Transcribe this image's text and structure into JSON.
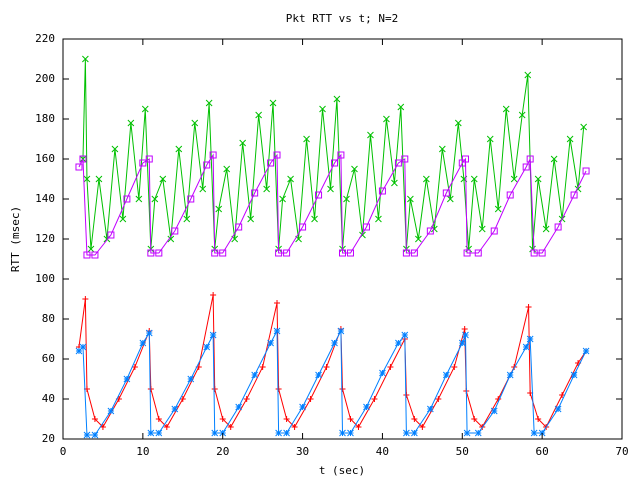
{
  "chart_data": {
    "type": "line",
    "title": "Pkt RTT vs t; N=2",
    "xlabel": "t (sec)",
    "ylabel": "RTT (msec)",
    "xlim": [
      0,
      70
    ],
    "ylim": [
      20,
      220
    ],
    "xticks": [
      0,
      10,
      20,
      30,
      40,
      50,
      60,
      70
    ],
    "yticks": [
      20,
      40,
      60,
      80,
      100,
      120,
      140,
      160,
      180,
      200,
      220
    ],
    "grid": false,
    "series": [
      {
        "color": "#ff0000",
        "marker": "plus",
        "x": [
          2,
          2.8,
          3,
          4,
          5,
          7,
          9,
          10.8,
          11,
          12,
          13,
          15,
          17,
          18.8,
          19,
          20,
          21,
          23,
          25,
          26.8,
          27,
          28,
          29,
          31,
          33,
          34.8,
          35,
          36,
          37,
          39,
          41,
          42.8,
          43,
          44,
          45,
          47,
          49,
          50.3,
          50.5,
          51.5,
          52.5,
          54.5,
          56.5,
          58.3,
          58.5,
          59.5,
          60.5,
          62.5,
          64.5,
          65.5
        ],
        "values": [
          66,
          90,
          45,
          30,
          26,
          40,
          56,
          74,
          45,
          30,
          26,
          40,
          56,
          92,
          45,
          30,
          26,
          40,
          56,
          88,
          45,
          30,
          26,
          40,
          56,
          75,
          45,
          30,
          26,
          40,
          56,
          70,
          42,
          30,
          26,
          40,
          56,
          75,
          44,
          30,
          26,
          40,
          56,
          86,
          43,
          30,
          26,
          42,
          58,
          64
        ]
      },
      {
        "color": "#00c000",
        "marker": "cross",
        "x": [
          2.5,
          2.8,
          3,
          3.5,
          4.5,
          5.5,
          6.5,
          7.5,
          8.5,
          9.5,
          10.3,
          11,
          11.5,
          12.5,
          13.5,
          14.5,
          15.5,
          16.5,
          17.5,
          18.3,
          19,
          19.5,
          20.5,
          21.5,
          22.5,
          23.5,
          24.5,
          25.5,
          26.3,
          27,
          27.5,
          28.5,
          29.5,
          30.5,
          31.5,
          32.5,
          33.5,
          34.3,
          35,
          35.5,
          36.5,
          37.5,
          38.5,
          39.5,
          40.5,
          41.5,
          42.3,
          43,
          43.5,
          44.5,
          45.5,
          46.5,
          47.5,
          48.5,
          49.5,
          50.2,
          50.8,
          51.5,
          52.5,
          53.5,
          54.5,
          55.5,
          56.5,
          57.5,
          58.2,
          58.8,
          59.5,
          60.5,
          61.5,
          62.5,
          63.5,
          64.5,
          65.2
        ],
        "values": [
          160,
          210,
          150,
          115,
          150,
          120,
          165,
          130,
          178,
          140,
          185,
          115,
          140,
          150,
          120,
          165,
          130,
          178,
          145,
          188,
          115,
          135,
          155,
          120,
          168,
          130,
          182,
          145,
          188,
          115,
          140,
          150,
          120,
          170,
          130,
          185,
          145,
          190,
          115,
          140,
          155,
          122,
          172,
          130,
          180,
          148,
          186,
          115,
          140,
          120,
          150,
          125,
          165,
          140,
          178,
          150,
          115,
          150,
          125,
          170,
          135,
          185,
          150,
          182,
          202,
          115,
          150,
          125,
          160,
          130,
          170,
          145,
          176
        ]
      },
      {
        "color": "#0080ff",
        "marker": "star",
        "x": [
          2,
          2.5,
          3,
          4,
          6,
          8,
          10,
          10.8,
          11,
          12,
          14,
          16,
          18,
          18.8,
          19,
          20,
          22,
          24,
          26,
          26.8,
          27,
          28,
          30,
          32,
          34,
          34.8,
          35,
          36,
          38,
          40,
          42,
          42.8,
          43,
          44,
          46,
          48,
          50,
          50.4,
          50.6,
          52,
          54,
          56,
          58,
          58.5,
          59,
          60,
          62,
          64,
          65.5
        ],
        "values": [
          64,
          66,
          22,
          22,
          34,
          50,
          68,
          73,
          23,
          23,
          35,
          50,
          66,
          72,
          23,
          23,
          36,
          52,
          68,
          74,
          23,
          23,
          36,
          52,
          68,
          74,
          23,
          23,
          36,
          53,
          68,
          72,
          23,
          23,
          35,
          52,
          68,
          72,
          23,
          23,
          34,
          52,
          66,
          70,
          23,
          23,
          35,
          52,
          64
        ]
      },
      {
        "color": "#c000ff",
        "marker": "square",
        "x": [
          2,
          2.5,
          3,
          4,
          6,
          8,
          10,
          10.8,
          11,
          12,
          14,
          16,
          18,
          18.8,
          19,
          20,
          22,
          24,
          26,
          26.8,
          27,
          28,
          30,
          32,
          34,
          34.8,
          35,
          36,
          38,
          40,
          42,
          42.8,
          43,
          44,
          46,
          48,
          50,
          50.4,
          50.6,
          52,
          54,
          56,
          58,
          58.5,
          59,
          60,
          62,
          64,
          65.5
        ],
        "values": [
          156,
          160,
          112,
          112,
          122,
          140,
          158,
          160,
          113,
          113,
          124,
          140,
          157,
          162,
          113,
          113,
          126,
          143,
          158,
          162,
          113,
          113,
          126,
          142,
          158,
          162,
          113,
          113,
          126,
          144,
          158,
          160,
          113,
          113,
          124,
          143,
          158,
          160,
          113,
          113,
          124,
          142,
          156,
          160,
          113,
          113,
          126,
          142,
          154
        ]
      }
    ]
  }
}
